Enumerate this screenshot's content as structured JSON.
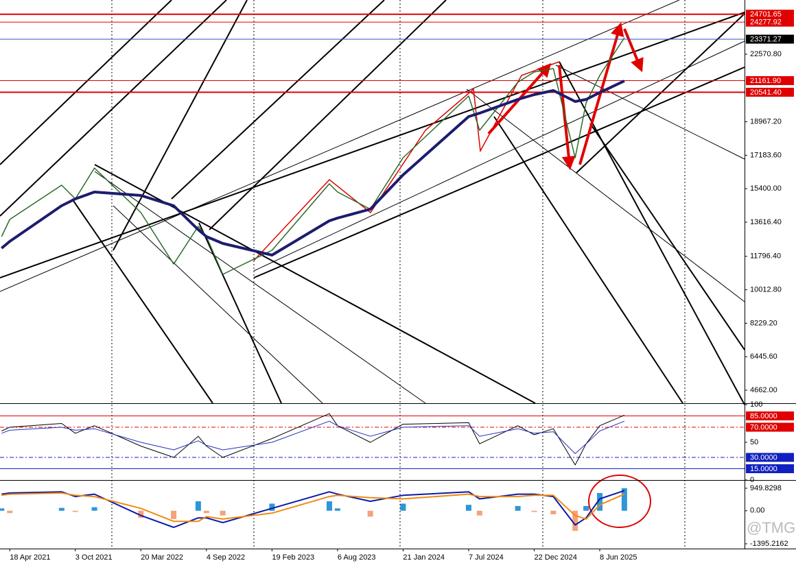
{
  "chart_data": [
    {
      "type": "line",
      "x": [
        "28 Mar 2021",
        "18 Apr 2021",
        "29 Aug 2021",
        "3 Oct 2021",
        "21 Nov 2021",
        "20 Mar 2022",
        "12 Jun 2022",
        "14 Aug 2022",
        "4 Sep 2022",
        "16 Oct 2022",
        "19 Feb 2023",
        "16 Jul 2023",
        "6 Aug 2023",
        "29 Oct 2023",
        "21 Jan 2024",
        "7 Jul 2024",
        "4 Aug 2024",
        "10 Nov 2024",
        "22 Dec 2024",
        "9 Feb 2025",
        "6 Apr 2025",
        "4 May 2025",
        "8 Jun 2025",
        "10 Aug 2025"
      ],
      "xlim": [
        "24 Mar 2021",
        "14 Jun 2026"
      ],
      "series": [
        {
          "color": "#2a6a2a",
          "line_width": 1.5,
          "values": [
            12849,
            13763,
            15590,
            14860,
            16504,
            14130,
            11387,
            13397,
            12849,
            10839,
            12118,
            15664,
            15225,
            14311,
            17053,
            20342,
            18514,
            21073,
            21621,
            21804,
            17053,
            19977,
            21439,
            23448
          ]
        },
        {
          "color": "#1c1c6e",
          "line_width": 4,
          "values": [
            12228,
            12593,
            14494,
            14860,
            15225,
            15042,
            14494,
            13215,
            12849,
            12484,
            11862,
            13690,
            13836,
            14311,
            16139,
            19246,
            19428,
            20159,
            20415,
            20634,
            20049,
            20159,
            20525,
            21146
          ]
        }
      ],
      "ylim": [
        3968,
        25458
      ],
      "yticks": [
        {
          "value": 22570.8,
          "label": "22570.80"
        },
        {
          "value": 18967.2,
          "label": "18967.20"
        },
        {
          "value": 17183.6,
          "label": "17183.60"
        },
        {
          "value": 15400,
          "label": "15400.00"
        },
        {
          "value": 13616.4,
          "label": "13616.40"
        },
        {
          "value": 11796.4,
          "label": "11796.40"
        },
        {
          "value": 10012.8,
          "label": "10012.80"
        },
        {
          "value": 8229.2,
          "label": "8229.20"
        },
        {
          "value": 6445.6,
          "label": "6445.60"
        },
        {
          "value": 4662,
          "label": "4662.00"
        }
      ],
      "hlines": [
        {
          "value": 24701.65,
          "label": "24701.65",
          "color": "#e00000",
          "width": 2
        },
        {
          "value": 24277.92,
          "label": "24277.92",
          "color": "#e00000",
          "width": 1
        },
        {
          "value": 23371.27,
          "label": "23371.27",
          "color": "#3050c0",
          "width": 1,
          "label_color": "#000000"
        },
        {
          "value": 21161.9,
          "label": "21161.90",
          "color": "#e00000",
          "width": 1
        },
        {
          "value": 20541.4,
          "label": "20541.40",
          "color": "#e00000",
          "width": 2
        }
      ]
    },
    {
      "type": "line",
      "x": [
        "28 Mar 2021",
        "18 Apr 2021",
        "29 Aug 2021",
        "3 Oct 2021",
        "21 Nov 2021",
        "20 Mar 2022",
        "12 Jun 2022",
        "14 Aug 2022",
        "4 Sep 2022",
        "16 Oct 2022",
        "19 Feb 2023",
        "16 Jul 2023",
        "6 Aug 2023",
        "29 Oct 2023",
        "21 Jan 2024",
        "7 Jul 2024",
        "4 Aug 2024",
        "10 Nov 2024",
        "22 Dec 2024",
        "9 Feb 2025",
        "6 Apr 2025",
        "4 May 2025",
        "8 Jun 2025",
        "10 Aug 2025"
      ],
      "xlim": [
        "24 Mar 2021",
        "14 Jun 2026"
      ],
      "series": [
        {
          "color": "#000000",
          "line_width": 1,
          "values": [
            65,
            70,
            75,
            62,
            72,
            45,
            30,
            58,
            45,
            30,
            55,
            88,
            72,
            50,
            74,
            76,
            48,
            72,
            60,
            68,
            20,
            48,
            72,
            86
          ]
        },
        {
          "color": "#2030c0",
          "line_width": 1,
          "values": [
            62,
            66,
            70,
            66,
            68,
            50,
            40,
            52,
            46,
            40,
            50,
            78,
            72,
            58,
            70,
            72,
            58,
            68,
            62,
            64,
            35,
            48,
            65,
            78
          ]
        }
      ],
      "ylim": [
        0,
        100
      ],
      "yticks": [
        100,
        50,
        0
      ],
      "hlines": [
        {
          "value": 85,
          "label": "85.0000",
          "color": "#e00000",
          "width": 1
        },
        {
          "value": 70,
          "label": "70.0000",
          "color": "#e00000",
          "width": 1,
          "dash": true
        },
        {
          "value": 30,
          "label": "30.0000",
          "color": "#1020c0",
          "width": 1,
          "dash": true
        },
        {
          "value": 15,
          "label": "15.0000",
          "color": "#1020c0",
          "width": 1
        }
      ]
    },
    {
      "type": "line",
      "x": [
        "28 Mar 2021",
        "18 Apr 2021",
        "29 Aug 2021",
        "3 Oct 2021",
        "21 Nov 2021",
        "20 Mar 2022",
        "12 Jun 2022",
        "14 Aug 2022",
        "4 Sep 2022",
        "16 Oct 2022",
        "19 Feb 2023",
        "16 Jul 2023",
        "6 Aug 2023",
        "29 Oct 2023",
        "21 Jan 2024",
        "7 Jul 2024",
        "4 Aug 2024",
        "10 Nov 2024",
        "22 Dec 2024",
        "9 Feb 2025",
        "6 Apr 2025",
        "4 May 2025",
        "8 Jun 2025",
        "10 Aug 2025"
      ],
      "xlim": [
        "24 Mar 2021",
        "14 Jun 2026"
      ],
      "series": [
        {
          "type": "bar",
          "color": "#2e96d8",
          "negative_color": "#f5a27a",
          "values": [
            100,
            -100,
            120,
            -50,
            150,
            -300,
            -350,
            400,
            -100,
            -200,
            300,
            400,
            100,
            -250,
            300,
            250,
            -200,
            200,
            -50,
            -150,
            -850,
            200,
            750,
            950
          ]
        },
        {
          "color": "#0a1aa8",
          "line_width": 2,
          "values": [
            700,
            750,
            800,
            600,
            700,
            -200,
            -700,
            -300,
            -300,
            -500,
            100,
            800,
            700,
            400,
            650,
            800,
            500,
            700,
            700,
            600,
            -600,
            -300,
            500,
            850
          ]
        },
        {
          "color": "#f08a10",
          "line_width": 2,
          "values": [
            650,
            700,
            750,
            650,
            600,
            100,
            -450,
            -450,
            -250,
            -350,
            -100,
            600,
            650,
            550,
            500,
            700,
            600,
            600,
            650,
            650,
            -200,
            -350,
            250,
            700
          ]
        }
      ],
      "ylim": [
        -1598,
        1239
      ],
      "yticks": [
        949.8298,
        {
          "value": 0,
          "label": "0.00"
        },
        -1395.2162
      ],
      "xticks": [
        "18 Apr 2021",
        "3 Oct 2021",
        "20 Mar 2022",
        "4 Sep 2022",
        "19 Feb 2023",
        "6 Aug 2023",
        "21 Jan 2024",
        "7 Jul 2024",
        "22 Dec 2024",
        "8 Jun 2025"
      ]
    }
  ],
  "watermark": "@TMGM"
}
